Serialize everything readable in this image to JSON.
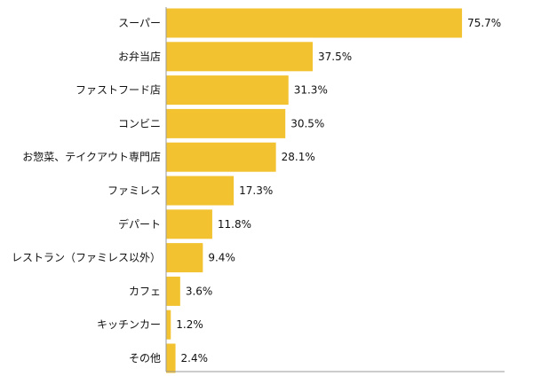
{
  "chart_data": {
    "type": "bar",
    "orientation": "horizontal",
    "categories": [
      "スーパー",
      "お弁当店",
      "ファストフード店",
      "コンビニ",
      "お惣菜、テイクアウト専門店",
      "ファミレス",
      "デパート",
      "レストラン（ファミレス以外）",
      "カフェ",
      "キッチンカー",
      "その他"
    ],
    "values": [
      75.7,
      37.5,
      31.3,
      30.5,
      28.1,
      17.3,
      11.8,
      9.4,
      3.6,
      1.2,
      2.4
    ],
    "value_labels": [
      "75.7%",
      "37.5%",
      "31.3%",
      "30.5%",
      "28.1%",
      "17.3%",
      "11.8%",
      "9.4%",
      "3.6%",
      "1.2%",
      "2.4%"
    ],
    "xlim": [
      0,
      100
    ],
    "grid": false,
    "colors": {
      "bar": "#F2C230",
      "axis": "#999999"
    }
  }
}
